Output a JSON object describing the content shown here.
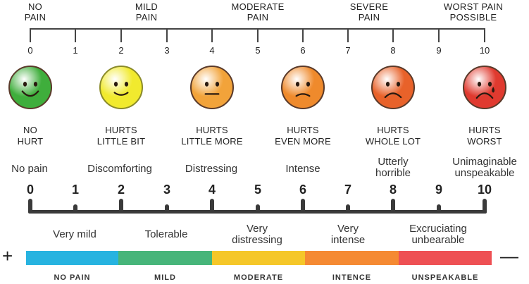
{
  "top_scale": {
    "labels": [
      "NO\nPAIN",
      "MILD\nPAIN",
      "MODERATE\nPAIN",
      "SEVERE\nPAIN",
      "WORST PAIN\nPOSSIBLE"
    ],
    "numbers": [
      "0",
      "1",
      "2",
      "3",
      "4",
      "5",
      "6",
      "7",
      "8",
      "9",
      "10"
    ]
  },
  "faces": [
    {
      "label": "NO\nHURT",
      "color": "#3fae3c",
      "mood": "happy"
    },
    {
      "label": "HURTS\nLITTLE BIT",
      "color": "#f1ea2e",
      "mood": "smile"
    },
    {
      "label": "HURTS\nLITTLE MORE",
      "color": "#f2a33a",
      "mood": "neutral"
    },
    {
      "label": "HURTS\nEVEN MORE",
      "color": "#ef8a2c",
      "mood": "slight-frown"
    },
    {
      "label": "HURTS\nWHOLE LOT",
      "color": "#e8622a",
      "mood": "frown"
    },
    {
      "label": "HURTS\nWORST",
      "color": "#e03a2f",
      "mood": "crying"
    }
  ],
  "upper_descriptors": [
    "No pain",
    "Discomforting",
    "Distressing",
    "Intense",
    "Utterly\nhorrible",
    "Unimaginable\nunspeakable"
  ],
  "bottom_scale": {
    "numbers": [
      "0",
      "1",
      "2",
      "3",
      "4",
      "5",
      "6",
      "7",
      "8",
      "9",
      "10"
    ]
  },
  "lower_descriptors": [
    "Very mild",
    "Tolerable",
    "Very\ndistressing",
    "Very\nintense",
    "Excruciating\nunbearable"
  ],
  "color_band": {
    "segments": [
      {
        "label": "NO PAIN",
        "color": "#27b3e0"
      },
      {
        "label": "MILD",
        "color": "#47b57a"
      },
      {
        "label": "MODERATE",
        "color": "#f5c729"
      },
      {
        "label": "INTENCE",
        "color": "#f58a33"
      },
      {
        "label": "UNSPEAKABLE",
        "color": "#ee5054"
      }
    ],
    "plus": "+",
    "minus": "—"
  }
}
